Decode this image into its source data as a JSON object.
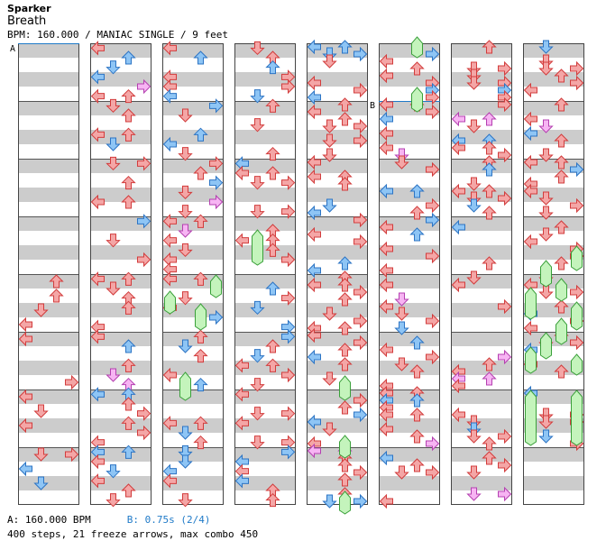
{
  "song": {
    "artist": "Sparker",
    "title": "Breath",
    "info": "BPM: 160.000 / MANIAC SINGLE / 9 feet"
  },
  "footer": {
    "bpm_a": "A: 160.000 BPM",
    "bpm_b": "B: 0.75s (2/4)",
    "stats": "400 steps, 21 freeze arrows, max combo 450"
  },
  "markers": {
    "a": "A",
    "b": "B"
  },
  "colors": {
    "stripe": "#cccccc",
    "lane_bg": "#ffffff",
    "note_red": "#f4a6a6",
    "note_red_stroke": "#d23c3c",
    "note_blue": "#8ec5f5",
    "note_blue_stroke": "#2c74c4",
    "note_pink": "#f7b4f3",
    "note_pink_stroke": "#b440b0",
    "freeze": "#c4f4bc",
    "freeze_stroke": "#3aa03a",
    "bpm_b_color": "#1f7ac8"
  },
  "chart_data": {
    "type": "step-chart",
    "columns": 8,
    "measures_per_column": 8,
    "lanes": [
      "left",
      "down",
      "up",
      "right"
    ],
    "steps_total": 400,
    "freeze_arrows": 21,
    "max_combo": 450,
    "bpm": 160.0,
    "stop_b_seconds": 0.75
  }
}
